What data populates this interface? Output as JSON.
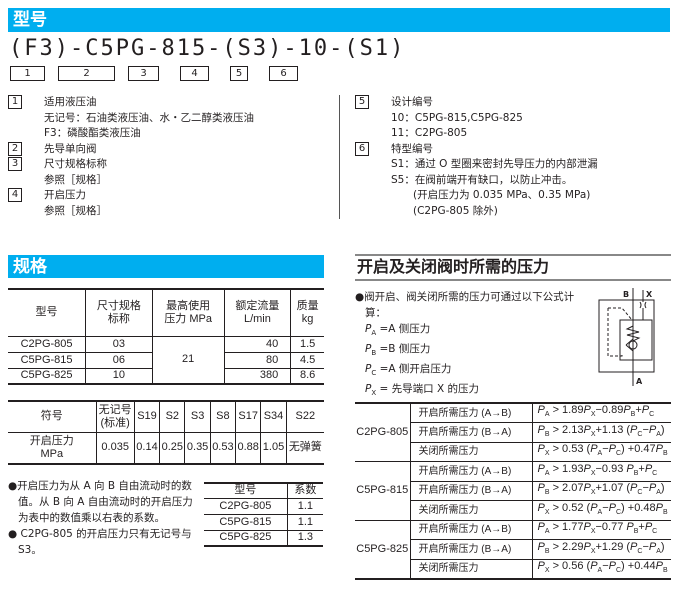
{
  "model_section": {
    "title": "型号",
    "model_code": "(F3)-C5PG-815-(S3)-10-(S1)",
    "position_labels": [
      "1",
      "2",
      "3",
      "4",
      "5",
      "6"
    ]
  },
  "model_items_left": [
    {
      "num": "1",
      "title": "适用液压油",
      "lines": [
        "无记号：石油类液压油、水・乙二醇类液压油",
        "F3：磷酸酯类液压油"
      ]
    },
    {
      "num": "2",
      "title": "先导单向阀",
      "lines": []
    },
    {
      "num": "3",
      "title": "尺寸规格标称",
      "lines": [
        "参照［规格］"
      ]
    },
    {
      "num": "4",
      "title": "开启压力",
      "lines": [
        "参照［规格］"
      ]
    }
  ],
  "model_items_right": [
    {
      "num": "5",
      "title": "设计编号",
      "lines": [
        "10：C5PG-815,C5PG-825",
        "11：C2PG-805"
      ]
    },
    {
      "num": "6",
      "title": "特型编号",
      "lines": [
        "S1：通过 O 型圈来密封先导压力的内部泄漏",
        "S5：在阀前端开有缺口，以防止冲击。",
        "(开启压力为 0.035 MPa、0.35 MPa)",
        "(C2PG-805 除外)"
      ]
    }
  ],
  "spec_section": {
    "title": "规格",
    "table1": {
      "headers": [
        "型号",
        "尺寸规格\n标称",
        "最高使用\n压力 MPa",
        "额定流量\nL/min",
        "质量\nkg"
      ],
      "rows": [
        [
          "C2PG-805",
          "03",
          "21",
          "40",
          "1.5"
        ],
        [
          "C5PG-815",
          "06",
          "",
          "80",
          "4.5"
        ],
        [
          "C5PG-825",
          "10",
          "",
          "380",
          "8.6"
        ]
      ]
    },
    "table2": {
      "headers": [
        "符号",
        "无记号\n(标准)",
        "S19",
        "S2",
        "S3",
        "S8",
        "S17",
        "S34",
        "S22"
      ],
      "row": [
        "开启压力\nMPa",
        "0.035",
        "0.14",
        "0.25",
        "0.35",
        "0.53",
        "0.88",
        "1.05",
        "无弹簧"
      ]
    },
    "notes": [
      "●开启压力为从 A 向 B 自由流动时的数值。从 B 向 A 自由流动时的开启压力为表中的数值乘以右表的系数。",
      "● C2PG-805 的开启压力只有无记号与 S3。"
    ],
    "coef_table": {
      "headers": [
        "型号",
        "系数"
      ],
      "rows": [
        [
          "C2PG-805",
          "1.1"
        ],
        [
          "C5PG-815",
          "1.1"
        ],
        [
          "C5PG-825",
          "1.3"
        ]
      ]
    }
  },
  "pressure_section": {
    "title": "开启及关闭阀时所需的压力",
    "intro": "●阀开启、阀关闭所需的压力可通过以下公式计算：",
    "defs": [
      "P_A =A 侧压力",
      "P_B =B 侧压力",
      "P_C =A 侧开启压力",
      "P_X = 先导端口 X 的压力"
    ],
    "diagram_labels": {
      "b": "B",
      "x": "X",
      "a": "A"
    },
    "rows": [
      {
        "model": "C2PG-805",
        "items": [
          [
            "开启所需压力 (A→B)",
            "P_A > 1.89P_X−0.89P_B+P_C"
          ],
          [
            "开启所需压力 (B→A)",
            "P_B > 2.13P_X+1.13 (P_C−P_A)"
          ],
          [
            "关闭所需压力",
            "P_X > 0.53 (P_A−P_C) +0.47P_B"
          ]
        ]
      },
      {
        "model": "C5PG-815",
        "items": [
          [
            "开启所需压力 (A→B)",
            "P_A > 1.93P_X−0.93 P_B+P_C"
          ],
          [
            "开启所需压力 (B→A)",
            "P_B > 2.07P_X+1.07 (P_C−P_A)"
          ],
          [
            "关闭所需压力",
            "P_X > 0.52 (P_A−P_C) +0.48P_B"
          ]
        ]
      },
      {
        "model": "C5PG-825",
        "items": [
          [
            "开启所需压力 (A→B)",
            "P_A > 1.77P_X−0.77 P_B+P_C"
          ],
          [
            "开启所需压力 (B→A)",
            "P_B > 2.29P_X+1.29 (P_C−P_A)"
          ],
          [
            "关闭所需压力",
            "P_X > 0.56 (P_A−P_C) +0.44P_B"
          ]
        ]
      }
    ]
  },
  "colors": {
    "accent": "#00aeef",
    "text": "#231f20",
    "rule": "#888888"
  }
}
